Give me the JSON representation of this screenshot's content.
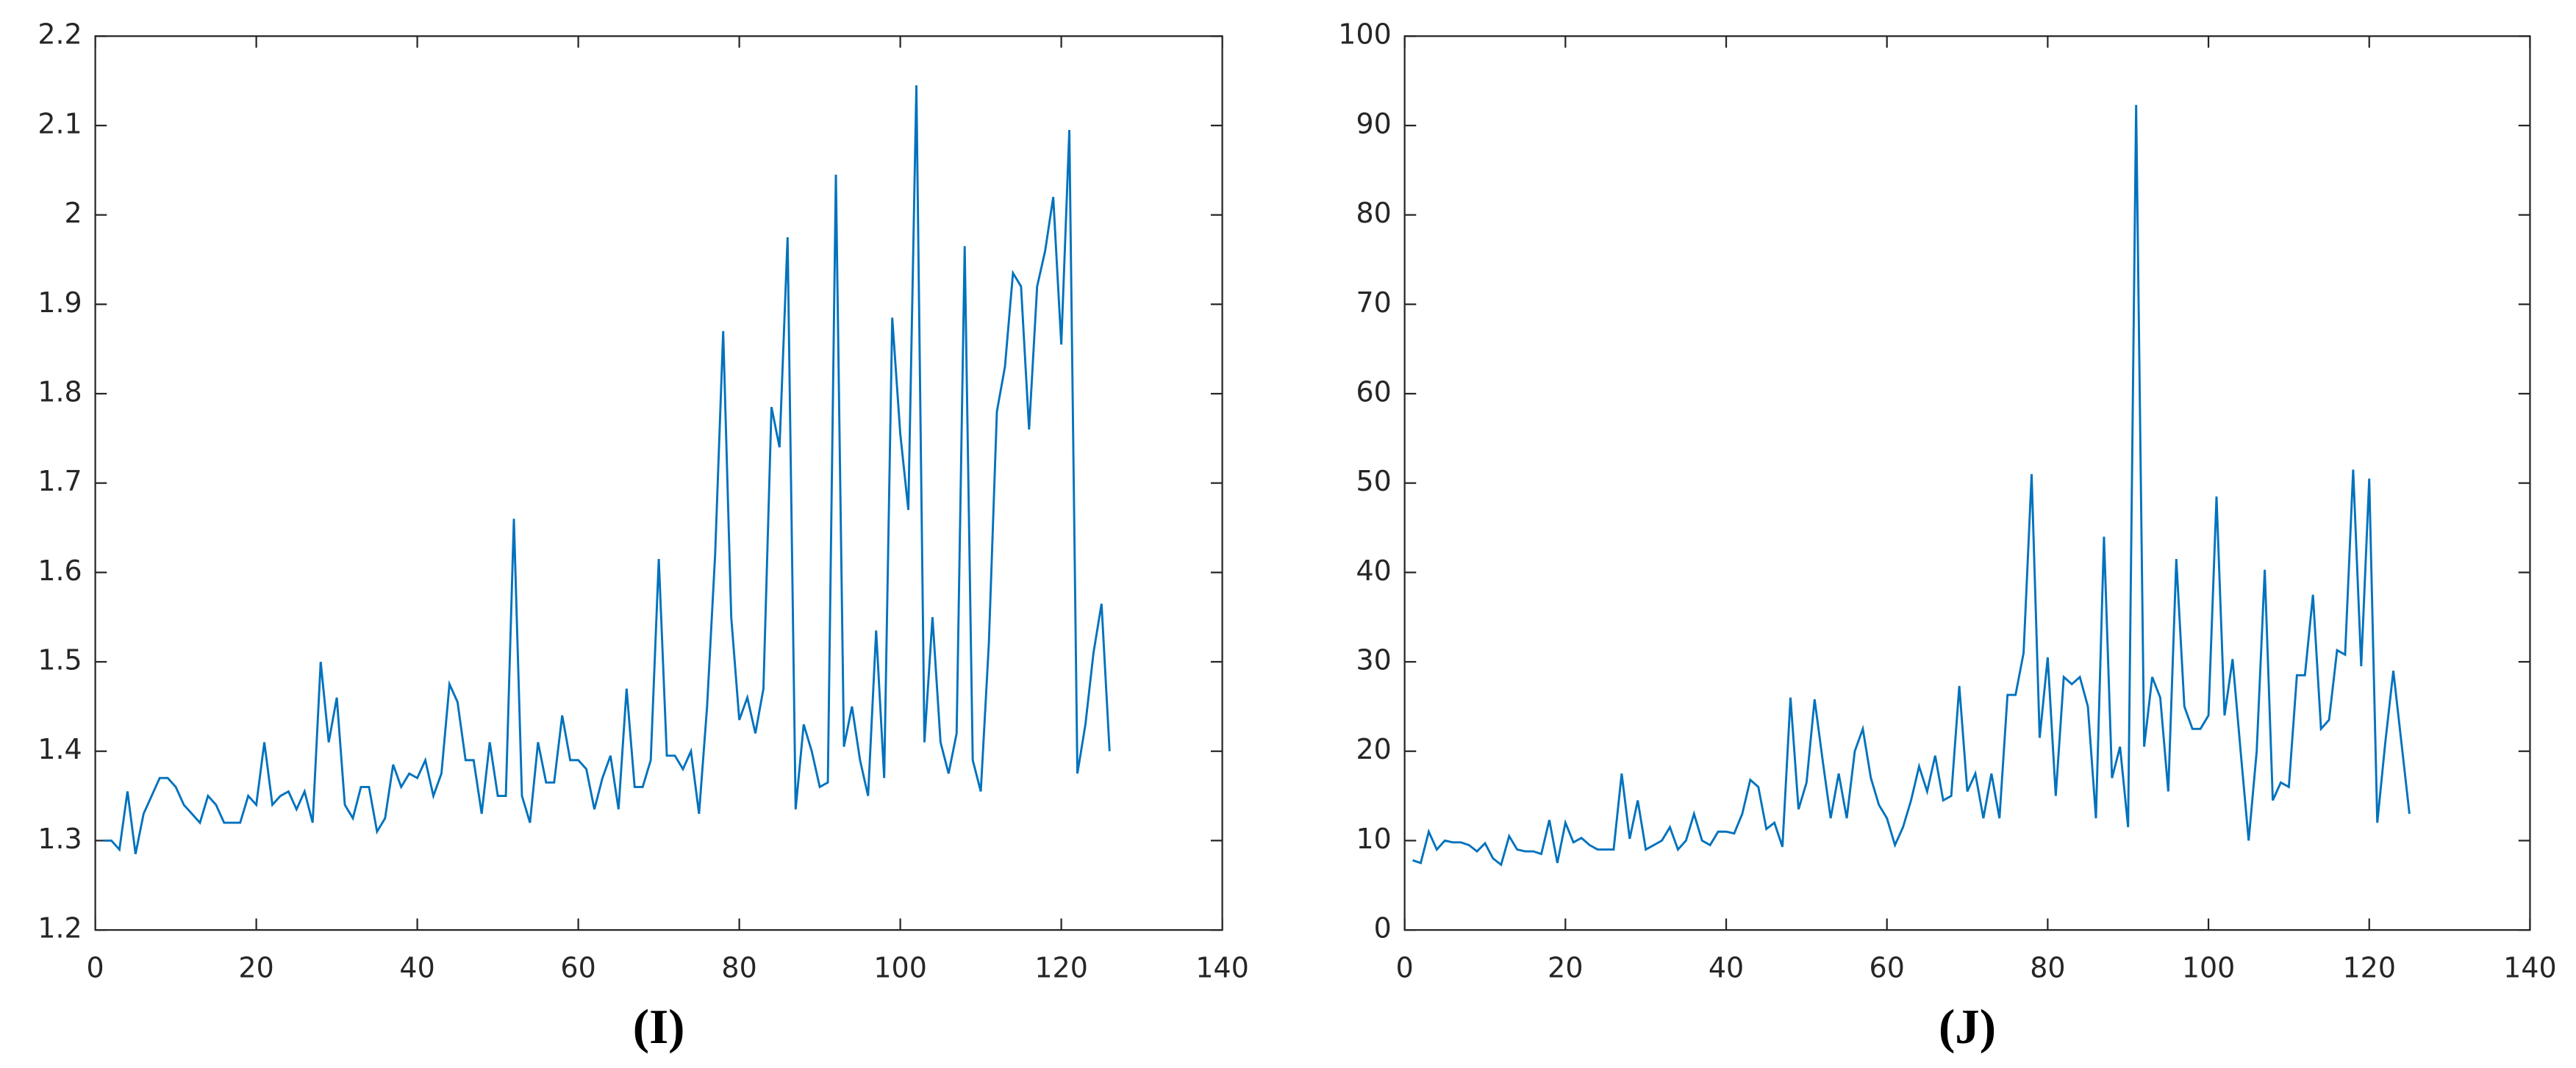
{
  "chart_data": [
    {
      "type": "line",
      "xlabel": "(I)",
      "color": "#0072bd",
      "xlim": [
        0,
        140
      ],
      "xticks": [
        0,
        20,
        40,
        60,
        80,
        100,
        120,
        140
      ],
      "ylim": [
        1.2,
        2.2
      ],
      "yticks": [
        1.2,
        1.3,
        1.4,
        1.5,
        1.6,
        1.7,
        1.8,
        1.9,
        2,
        2.1,
        2.2
      ],
      "x": [
        1,
        2,
        3,
        4,
        5,
        6,
        7,
        8,
        9,
        10,
        11,
        12,
        13,
        14,
        15,
        16,
        17,
        18,
        19,
        20,
        21,
        22,
        23,
        24,
        25,
        26,
        27,
        28,
        29,
        30,
        31,
        32,
        33,
        34,
        35,
        36,
        37,
        38,
        39,
        40,
        41,
        42,
        43,
        44,
        45,
        46,
        47,
        48,
        49,
        50,
        51,
        52,
        53,
        54,
        55,
        56,
        57,
        58,
        59,
        60,
        61,
        62,
        63,
        64,
        65,
        66,
        67,
        68,
        69,
        70,
        71,
        72,
        73,
        74,
        75,
        76,
        77,
        78,
        79,
        80,
        81,
        82,
        83,
        84,
        85,
        86,
        87,
        88,
        89,
        90,
        91,
        92,
        93,
        94,
        95,
        96,
        97,
        98,
        99,
        100,
        101,
        102,
        103,
        104,
        105,
        106,
        107,
        108,
        109,
        110,
        111,
        112,
        113,
        114,
        115,
        116,
        117,
        118,
        119,
        120,
        121,
        122,
        123,
        124,
        125,
        126
      ],
      "values": [
        1.3,
        1.3,
        1.29,
        1.355,
        1.285,
        1.33,
        1.35,
        1.37,
        1.37,
        1.36,
        1.34,
        1.33,
        1.32,
        1.35,
        1.34,
        1.32,
        1.32,
        1.32,
        1.35,
        1.34,
        1.41,
        1.34,
        1.35,
        1.355,
        1.335,
        1.355,
        1.32,
        1.5,
        1.41,
        1.46,
        1.34,
        1.325,
        1.36,
        1.36,
        1.31,
        1.325,
        1.385,
        1.36,
        1.375,
        1.37,
        1.39,
        1.35,
        1.375,
        1.475,
        1.455,
        1.39,
        1.39,
        1.33,
        1.41,
        1.35,
        1.35,
        1.66,
        1.35,
        1.32,
        1.41,
        1.365,
        1.365,
        1.44,
        1.39,
        1.39,
        1.38,
        1.335,
        1.37,
        1.395,
        1.335,
        1.47,
        1.36,
        1.36,
        1.39,
        1.615,
        1.395,
        1.395,
        1.38,
        1.4,
        1.33,
        1.45,
        1.62,
        1.87,
        1.55,
        1.435,
        1.46,
        1.42,
        1.47,
        1.785,
        1.74,
        1.975,
        1.335,
        1.43,
        1.4,
        1.36,
        1.365,
        2.045,
        1.405,
        1.45,
        1.39,
        1.35,
        1.535,
        1.37,
        1.885,
        1.755,
        1.67,
        2.145,
        1.41,
        1.55,
        1.41,
        1.375,
        1.42,
        1.965,
        1.39,
        1.355,
        1.52,
        1.78,
        1.83,
        1.935,
        1.92,
        1.76,
        1.92,
        1.96,
        2.02,
        1.855,
        2.095,
        1.375,
        1.43,
        1.51,
        1.565,
        1.4
      ]
    },
    {
      "type": "line",
      "xlabel": "(J)",
      "color": "#0072bd",
      "xlim": [
        0,
        140
      ],
      "xticks": [
        0,
        20,
        40,
        60,
        80,
        100,
        120,
        140
      ],
      "ylim": [
        0,
        100
      ],
      "yticks": [
        0,
        10,
        20,
        30,
        40,
        50,
        60,
        70,
        80,
        90,
        100
      ],
      "x": [
        1,
        2,
        3,
        4,
        5,
        6,
        7,
        8,
        9,
        10,
        11,
        12,
        13,
        14,
        15,
        16,
        17,
        18,
        19,
        20,
        21,
        22,
        23,
        24,
        25,
        26,
        27,
        28,
        29,
        30,
        31,
        32,
        33,
        34,
        35,
        36,
        37,
        38,
        39,
        40,
        41,
        42,
        43,
        44,
        45,
        46,
        47,
        48,
        49,
        50,
        51,
        52,
        53,
        54,
        55,
        56,
        57,
        58,
        59,
        60,
        61,
        62,
        63,
        64,
        65,
        66,
        67,
        68,
        69,
        70,
        71,
        72,
        73,
        74,
        75,
        76,
        77,
        78,
        79,
        80,
        81,
        82,
        83,
        84,
        85,
        86,
        87,
        88,
        89,
        90,
        91,
        92,
        93,
        94,
        95,
        96,
        97,
        98,
        99,
        100,
        101,
        102,
        103,
        104,
        105,
        106,
        107,
        108,
        109,
        110,
        111,
        112,
        113,
        114,
        115,
        116,
        117,
        118,
        119,
        120,
        121,
        122,
        123,
        124,
        125
      ],
      "values": [
        7.8,
        7.5,
        11,
        9,
        10,
        9.8,
        9.8,
        9.5,
        8.8,
        9.7,
        8,
        7.3,
        10.5,
        9,
        8.8,
        8.8,
        8.5,
        12.3,
        7.5,
        12,
        9.8,
        10.3,
        9.5,
        9,
        9,
        9,
        17.5,
        10.2,
        14.5,
        9,
        9.5,
        10,
        11.5,
        9,
        10,
        13,
        10,
        9.5,
        11,
        11,
        10.8,
        13,
        16.8,
        16,
        11.3,
        12,
        9.3,
        26,
        13.5,
        16.5,
        25.8,
        19,
        12.5,
        17.5,
        12.5,
        20,
        22.5,
        17,
        14,
        12.5,
        9.5,
        11.5,
        14.5,
        18.3,
        15.5,
        19.5,
        14.5,
        15,
        27.3,
        15.5,
        17.5,
        12.5,
        17.5,
        12.5,
        26.3,
        26.3,
        31,
        51,
        21.5,
        30.5,
        15,
        28.3,
        27.5,
        28.3,
        25,
        12.5,
        44,
        17,
        20.5,
        11.5,
        92.3,
        20.5,
        28.3,
        26,
        15.5,
        41.5,
        25,
        22.5,
        22.5,
        24,
        48.5,
        24,
        30.3,
        20,
        10,
        20,
        40.3,
        14.5,
        16.5,
        16,
        28.5,
        28.5,
        37.5,
        22.5,
        23.5,
        31.3,
        30.8,
        51.5,
        29.5,
        50.5,
        12,
        21,
        29,
        21,
        13
      ]
    }
  ]
}
